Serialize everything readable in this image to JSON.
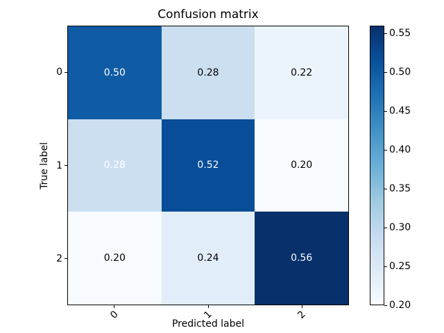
{
  "chart_data": {
    "type": "heatmap",
    "title": "Confusion matrix",
    "xlabel": "Predicted label",
    "ylabel": "True label",
    "x_tick_labels": [
      "0",
      "1",
      "2"
    ],
    "y_tick_labels": [
      "0",
      "1",
      "2"
    ],
    "matrix": [
      [
        0.5,
        0.28,
        0.22
      ],
      [
        0.28,
        0.52,
        0.2
      ],
      [
        0.2,
        0.24,
        0.56
      ]
    ],
    "cell_labels": [
      [
        "0.50",
        "0.28",
        "0.22"
      ],
      [
        "0.28",
        "0.52",
        "0.20"
      ],
      [
        "0.20",
        "0.24",
        "0.56"
      ]
    ],
    "cell_colors": [
      [
        "#105ca4",
        "#cbdff1",
        "#ecf4fb"
      ],
      [
        "#cbdff1",
        "#084d97",
        "#f7fbff"
      ],
      [
        "#f7fbff",
        "#e1edf8",
        "#08306b"
      ]
    ],
    "cell_text_colors": [
      [
        "#ffffff",
        "#000000",
        "#000000"
      ],
      [
        "#ffffff",
        "#ffffff",
        "#000000"
      ],
      [
        "#000000",
        "#000000",
        "#ffffff"
      ]
    ],
    "colormap": "Blues",
    "grid": false,
    "colorbar": {
      "vmin": 0.2,
      "vmax": 0.56,
      "tick_values": [
        0.2,
        0.25,
        0.3,
        0.35,
        0.4,
        0.45,
        0.5,
        0.55
      ],
      "tick_labels": [
        "0.20",
        "0.25",
        "0.30",
        "0.35",
        "0.40",
        "0.45",
        "0.50",
        "0.55"
      ],
      "gradient_stops": [
        "#f7fbff",
        "#deebf7",
        "#c6dbef",
        "#9ecae1",
        "#6baed6",
        "#4292c6",
        "#2171b5",
        "#08519c",
        "#08306b"
      ]
    }
  }
}
